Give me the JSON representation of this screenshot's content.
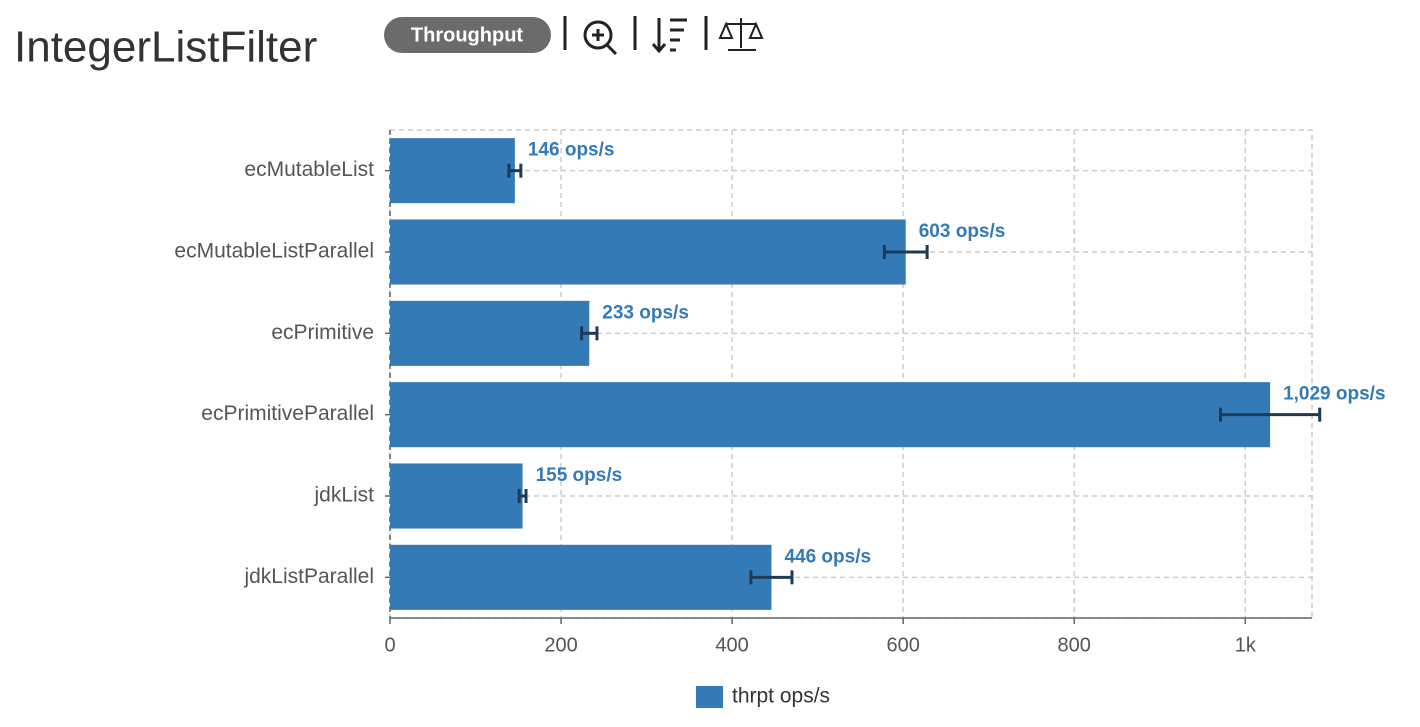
{
  "chart_data": {
    "type": "bar",
    "orientation": "horizontal",
    "title": "IntegerListFilter",
    "badge": "Throughput",
    "categories": [
      "ecMutableList",
      "ecMutableListParallel",
      "ecPrimitive",
      "ecPrimitiveParallel",
      "jdkList",
      "jdkListParallel"
    ],
    "series": [
      {
        "name": "thrpt ops/s",
        "color": "#337ab7",
        "values": [
          146,
          603,
          233,
          1029,
          155,
          446
        ],
        "errors": [
          7,
          25,
          9,
          58,
          4,
          24
        ],
        "value_labels": [
          "146 ops/s",
          "603 ops/s",
          "233 ops/s",
          "1,029 ops/s",
          "155 ops/s",
          "446 ops/s"
        ]
      }
    ],
    "xlim": [
      0,
      1078
    ],
    "xticks": [
      0,
      200,
      400,
      600,
      800,
      {
        "value": 1000,
        "label": "1k"
      }
    ],
    "grid": true
  }
}
